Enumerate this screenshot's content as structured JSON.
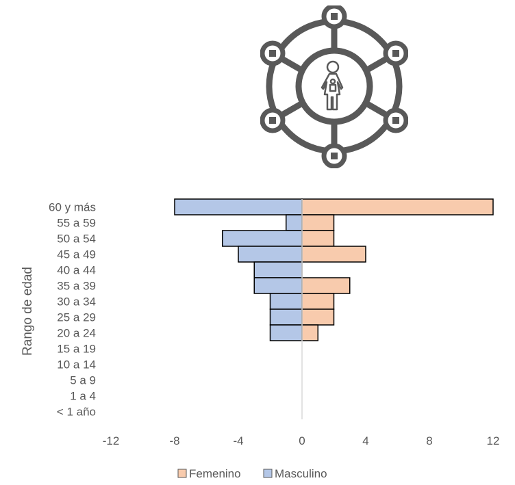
{
  "chart_data": {
    "type": "bar",
    "orientation": "horizontal",
    "subtype": "population-pyramid",
    "ylabel": "Rango de edad",
    "xlabel": "",
    "categories": [
      "60 y más",
      "55 a 59",
      "50 a 54",
      "45 a 49",
      "40 a 44",
      "35 a 39",
      "30 a 34",
      "25 a 29",
      "20 a 24",
      "15 a 19",
      "10 a 14",
      "5 a 9",
      "1 a 4",
      "< 1 año"
    ],
    "series": [
      {
        "name": "Femenino",
        "color": "#F8CBAD",
        "values": [
          12,
          2,
          2,
          4,
          0,
          3,
          2,
          2,
          1,
          0,
          0,
          0,
          0,
          0
        ]
      },
      {
        "name": "Masculino",
        "color": "#B4C7E7",
        "values": [
          -8,
          -1,
          -5,
          -4,
          -3,
          -3,
          -2,
          -2,
          -2,
          0,
          0,
          0,
          0,
          0
        ]
      }
    ],
    "xlim": [
      -12,
      12
    ],
    "xticks": [
      -12,
      -8,
      -4,
      0,
      4,
      8,
      12
    ],
    "xtick_labels": [
      "-12",
      "-8",
      "-4",
      "0",
      "4",
      "8",
      "12"
    ],
    "legend": {
      "position": "bottom",
      "entries": [
        "Femenino",
        "Masculino"
      ]
    },
    "grid": false
  },
  "icon": {
    "name": "woman-child-network-icon",
    "color": "#595959"
  }
}
